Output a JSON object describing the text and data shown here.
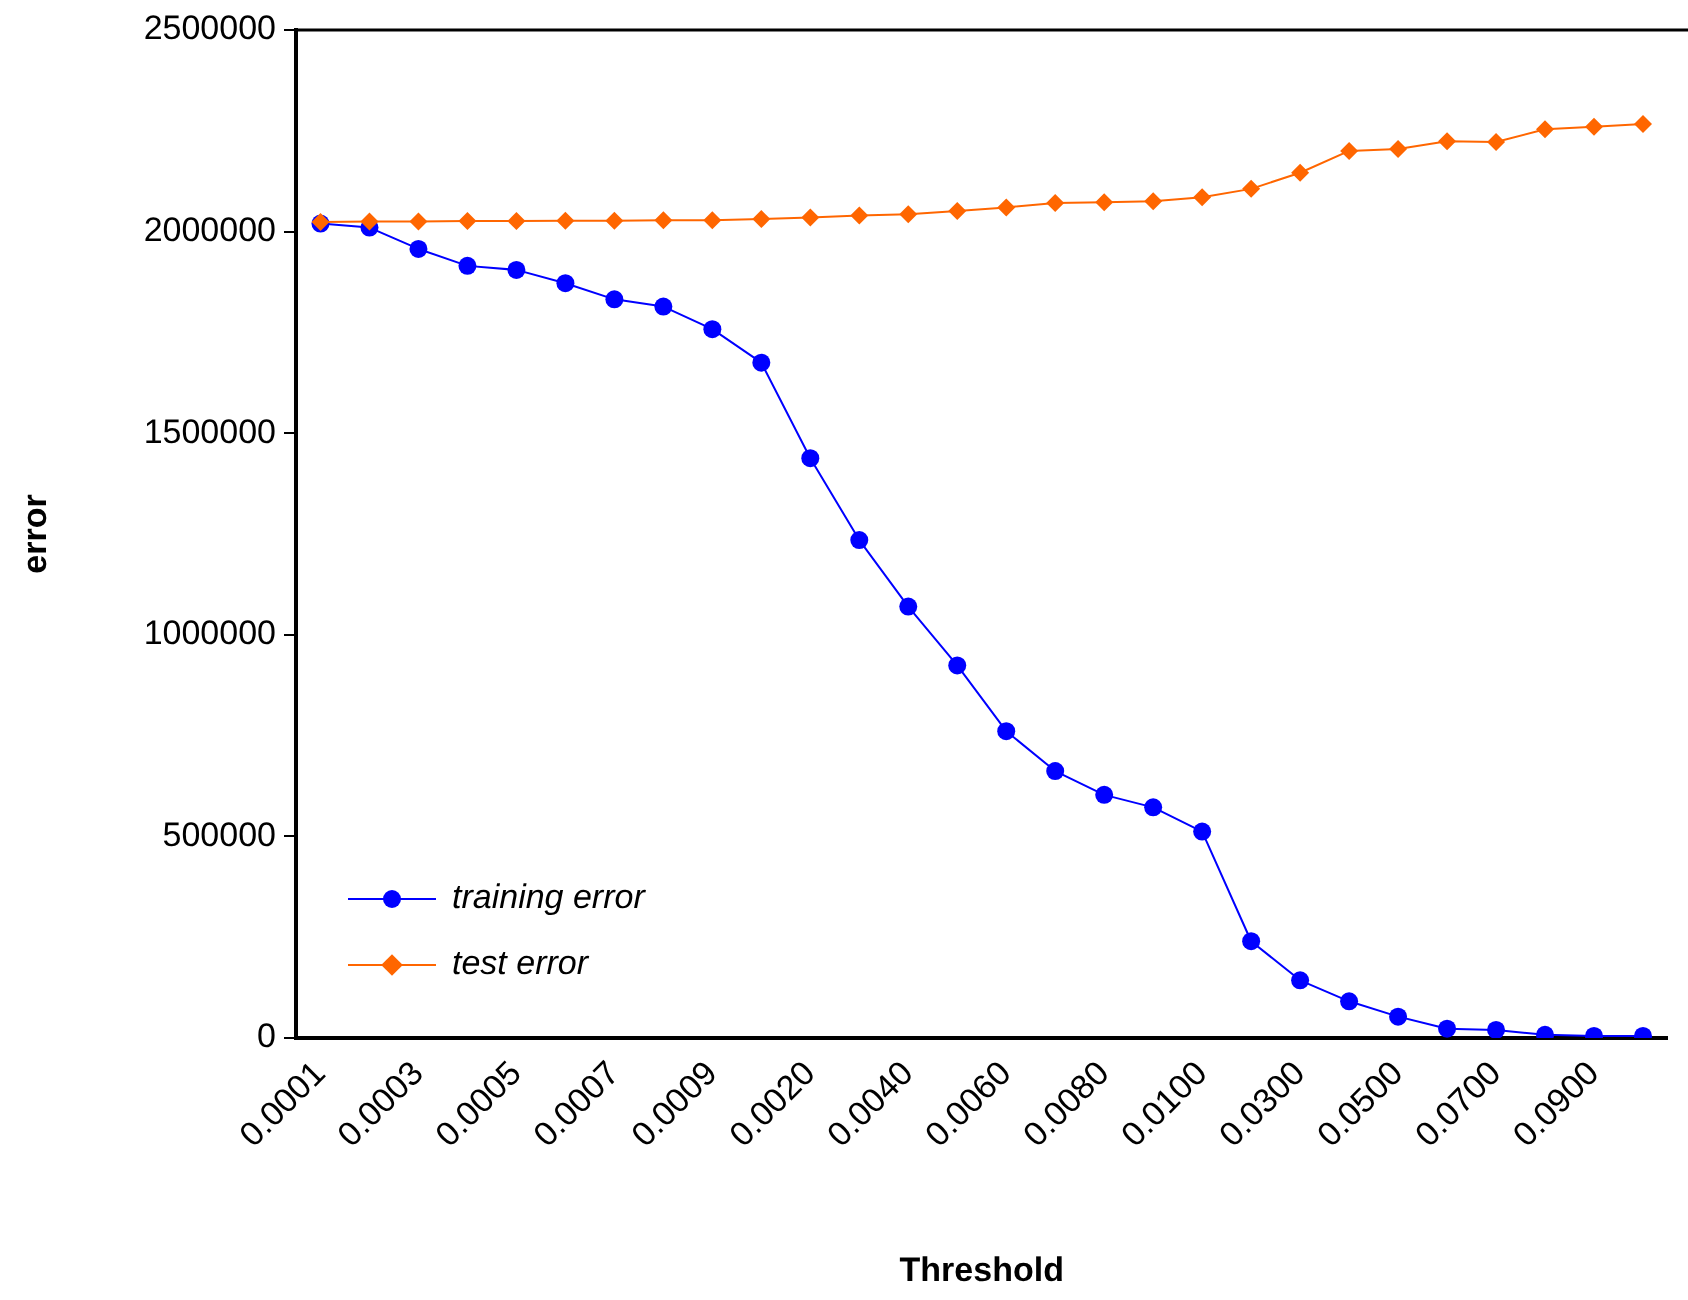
{
  "chart_data": {
    "type": "line",
    "xlabel": "Threshold",
    "ylabel": "error",
    "categories": [
      "0.0001",
      null,
      "0.0003",
      null,
      "0.0005",
      null,
      "0.0007",
      null,
      "0.0009",
      null,
      "0.0020",
      null,
      "0.0040",
      null,
      "0.0060",
      null,
      "0.0080",
      null,
      "0.0100",
      null,
      "0.0300",
      null,
      "0.0500",
      null,
      "0.0700",
      null,
      "0.0900",
      null
    ],
    "series": [
      {
        "name": "training error",
        "color": "#0000ff",
        "marker": "circle",
        "values": [
          2020000,
          2010000,
          1957000,
          1915000,
          1905000,
          1872000,
          1832000,
          1814000,
          1758000,
          1675000,
          1438000,
          1235000,
          1070000,
          924000,
          761000,
          662000,
          603000,
          572000,
          512000,
          240000,
          143000,
          91000,
          53000,
          23000,
          20000,
          8000,
          5000,
          5000
        ]
      },
      {
        "name": "test error",
        "color": "#ff6600",
        "marker": "diamond",
        "values": [
          2024000,
          2025000,
          2025000,
          2026000,
          2026000,
          2027000,
          2027000,
          2028000,
          2028000,
          2031000,
          2035000,
          2040000,
          2043000,
          2051000,
          2060000,
          2071000,
          2073000,
          2075000,
          2085000,
          2106000,
          2146000,
          2200000,
          2205000,
          2224000,
          2222000,
          2254000,
          2260000,
          2267000
        ]
      }
    ],
    "ylim": [
      0,
      2500000
    ],
    "yticks": [
      0,
      500000,
      1000000,
      1500000,
      2000000,
      2500000
    ],
    "grid": false,
    "legend": "bottom left",
    "line_style": "solid"
  }
}
